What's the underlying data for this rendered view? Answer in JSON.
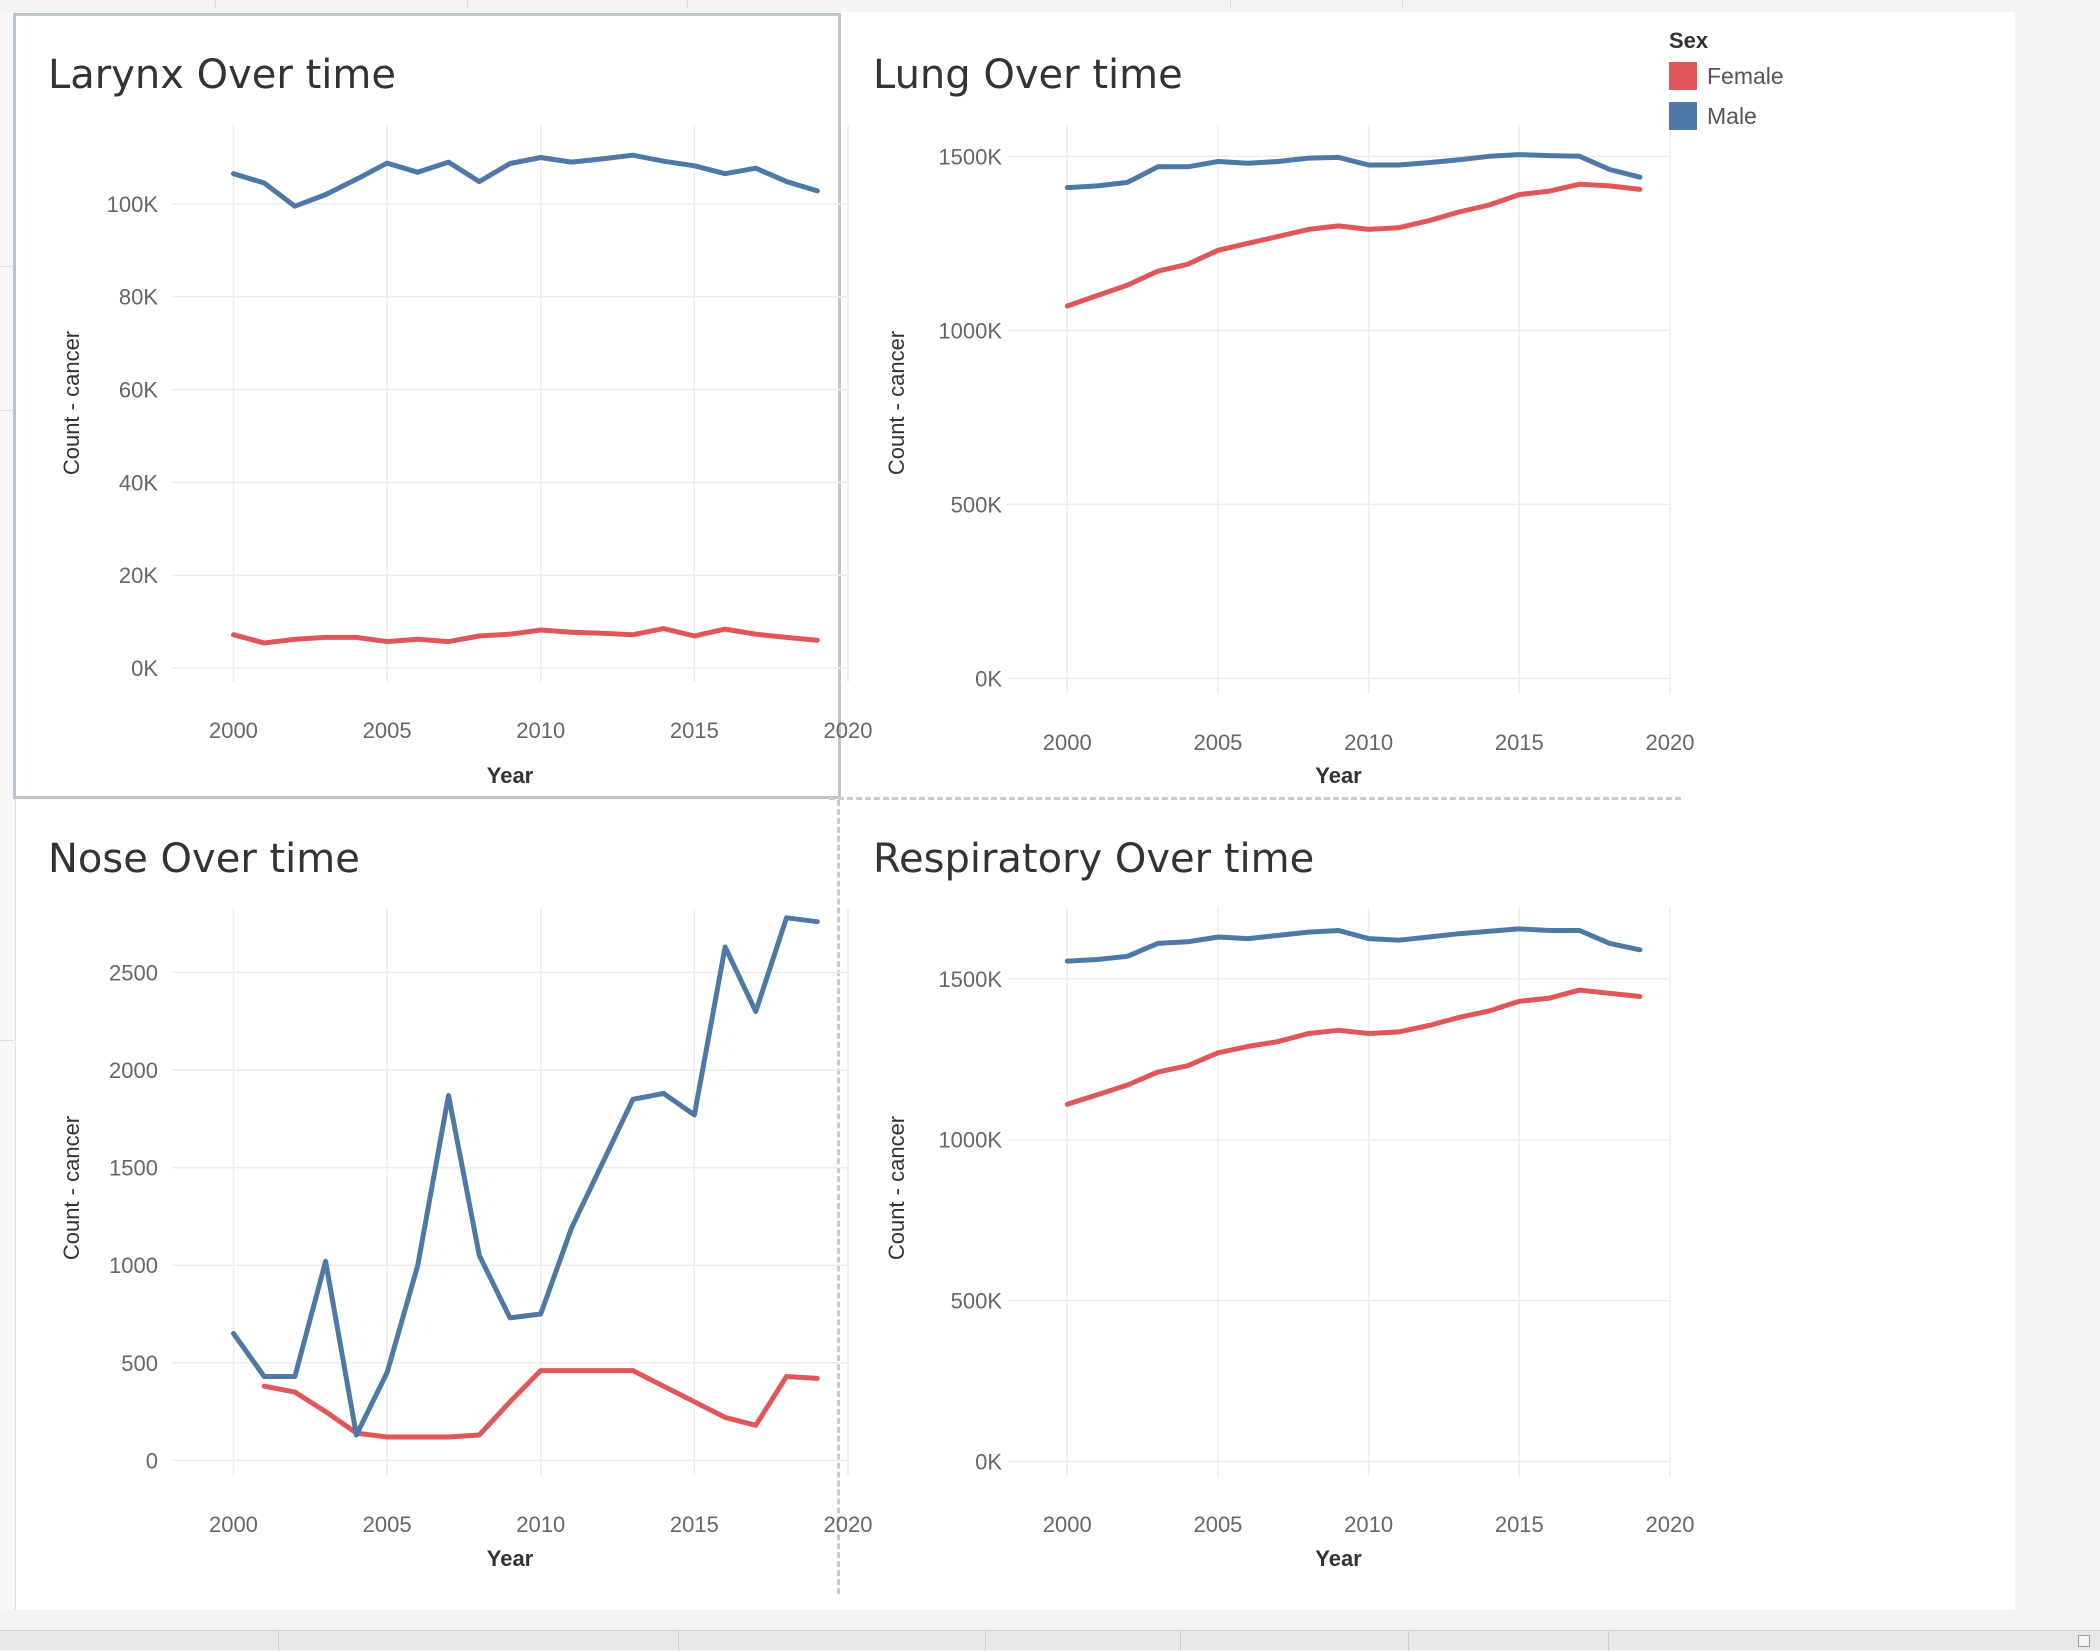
{
  "legend": {
    "title": "Sex",
    "items": [
      {
        "label": "Female",
        "color": "#e15759"
      },
      {
        "label": "Male",
        "color": "#4e79a7"
      }
    ]
  },
  "chart_data": [
    {
      "type": "line",
      "title": "Larynx Over time",
      "xlabel": "Year",
      "ylabel": "Count - cancer",
      "xlim": [
        1998,
        2020
      ],
      "ylim": [
        -3000,
        117000
      ],
      "xticks": [
        2000,
        2005,
        2010,
        2015,
        2020
      ],
      "yticks": [
        {
          "v": 0,
          "label": "0K"
        },
        {
          "v": 20000,
          "label": "20K"
        },
        {
          "v": 40000,
          "label": "40K"
        },
        {
          "v": 60000,
          "label": "60K"
        },
        {
          "v": 80000,
          "label": "80K"
        },
        {
          "v": 100000,
          "label": "100K"
        }
      ],
      "grid": true,
      "x": [
        2000,
        2001,
        2002,
        2003,
        2004,
        2005,
        2006,
        2007,
        2008,
        2009,
        2010,
        2011,
        2012,
        2013,
        2014,
        2015,
        2016,
        2017,
        2018,
        2019
      ],
      "series": [
        {
          "name": "Female",
          "color": "#e15759",
          "values": [
            7200,
            5400,
            6200,
            6600,
            6600,
            5700,
            6200,
            5700,
            6900,
            7300,
            8200,
            7700,
            7500,
            7200,
            8500,
            6900,
            8400,
            7300,
            6600,
            6000
          ]
        },
        {
          "name": "Male",
          "color": "#4e79a7",
          "values": [
            106500,
            104500,
            99500,
            102000,
            105300,
            108800,
            106800,
            109000,
            104800,
            108700,
            110000,
            109000,
            109700,
            110500,
            109200,
            108200,
            106500,
            107700,
            104800,
            102800
          ]
        }
      ]
    },
    {
      "type": "line",
      "title": "Lung Over time",
      "xlabel": "Year",
      "ylabel": "Count - cancer",
      "xlim": [
        1998,
        2020
      ],
      "ylim": [
        -45000,
        1590000
      ],
      "xticks": [
        2000,
        2005,
        2010,
        2015,
        2020
      ],
      "yticks": [
        {
          "v": 0,
          "label": "0K"
        },
        {
          "v": 500000,
          "label": "500K"
        },
        {
          "v": 1000000,
          "label": "1000K"
        },
        {
          "v": 1500000,
          "label": "1500K"
        }
      ],
      "grid": true,
      "x": [
        2000,
        2001,
        2002,
        2003,
        2004,
        2005,
        2006,
        2007,
        2008,
        2009,
        2010,
        2011,
        2012,
        2013,
        2014,
        2015,
        2016,
        2017,
        2018,
        2019
      ],
      "series": [
        {
          "name": "Female",
          "color": "#e15759",
          "values": [
            1070000,
            1100000,
            1130000,
            1170000,
            1190000,
            1230000,
            1250000,
            1270000,
            1290000,
            1300000,
            1290000,
            1295000,
            1315000,
            1340000,
            1360000,
            1390000,
            1400000,
            1420000,
            1415000,
            1405000
          ]
        },
        {
          "name": "Male",
          "color": "#4e79a7",
          "values": [
            1410000,
            1415000,
            1425000,
            1470000,
            1470000,
            1485000,
            1480000,
            1485000,
            1495000,
            1497000,
            1475000,
            1475000,
            1482000,
            1490000,
            1500000,
            1505000,
            1502000,
            1500000,
            1462000,
            1440000
          ]
        }
      ]
    },
    {
      "type": "line",
      "title": "Nose Over time",
      "xlabel": "Year",
      "ylabel": "Count - cancer",
      "xlim": [
        1998,
        2020
      ],
      "ylim": [
        -80,
        2830
      ],
      "xticks": [
        2000,
        2005,
        2010,
        2015,
        2020
      ],
      "yticks": [
        {
          "v": 0,
          "label": "0"
        },
        {
          "v": 500,
          "label": "500"
        },
        {
          "v": 1000,
          "label": "1000"
        },
        {
          "v": 1500,
          "label": "1500"
        },
        {
          "v": 2000,
          "label": "2000"
        },
        {
          "v": 2500,
          "label": "2500"
        }
      ],
      "grid": true,
      "x": [
        2000,
        2001,
        2002,
        2003,
        2004,
        2005,
        2006,
        2007,
        2008,
        2009,
        2010,
        2011,
        2012,
        2013,
        2014,
        2015,
        2016,
        2017,
        2018,
        2019
      ],
      "series": [
        {
          "name": "Female",
          "color": "#e15759",
          "values": [
            null,
            380,
            350,
            250,
            140,
            120,
            120,
            120,
            130,
            300,
            460,
            460,
            460,
            460,
            380,
            300,
            220,
            180,
            430,
            420
          ]
        },
        {
          "name": "Male",
          "color": "#4e79a7",
          "values": [
            650,
            430,
            430,
            1020,
            130,
            450,
            1000,
            1870,
            1050,
            730,
            750,
            1190,
            1520,
            1850,
            1880,
            1770,
            2630,
            2300,
            2780,
            2760
          ]
        }
      ]
    },
    {
      "type": "line",
      "title": "Respiratory Over time",
      "xlabel": "Year",
      "ylabel": "Count - cancer",
      "xlim": [
        1998,
        2020
      ],
      "ylim": [
        -45000,
        1720000
      ],
      "xticks": [
        2000,
        2005,
        2010,
        2015,
        2020
      ],
      "yticks": [
        {
          "v": 0,
          "label": "0K"
        },
        {
          "v": 500000,
          "label": "500K"
        },
        {
          "v": 1000000,
          "label": "1000K"
        },
        {
          "v": 1500000,
          "label": "1500K"
        }
      ],
      "grid": true,
      "x": [
        2000,
        2001,
        2002,
        2003,
        2004,
        2005,
        2006,
        2007,
        2008,
        2009,
        2010,
        2011,
        2012,
        2013,
        2014,
        2015,
        2016,
        2017,
        2018,
        2019
      ],
      "series": [
        {
          "name": "Female",
          "color": "#e15759",
          "values": [
            1110000,
            1140000,
            1170000,
            1210000,
            1230000,
            1270000,
            1290000,
            1305000,
            1330000,
            1340000,
            1330000,
            1335000,
            1355000,
            1380000,
            1400000,
            1430000,
            1440000,
            1465000,
            1455000,
            1445000
          ]
        },
        {
          "name": "Male",
          "color": "#4e79a7",
          "values": [
            1555000,
            1560000,
            1570000,
            1610000,
            1615000,
            1630000,
            1625000,
            1635000,
            1645000,
            1650000,
            1625000,
            1620000,
            1630000,
            1640000,
            1648000,
            1655000,
            1650000,
            1650000,
            1610000,
            1590000
          ]
        }
      ]
    }
  ]
}
